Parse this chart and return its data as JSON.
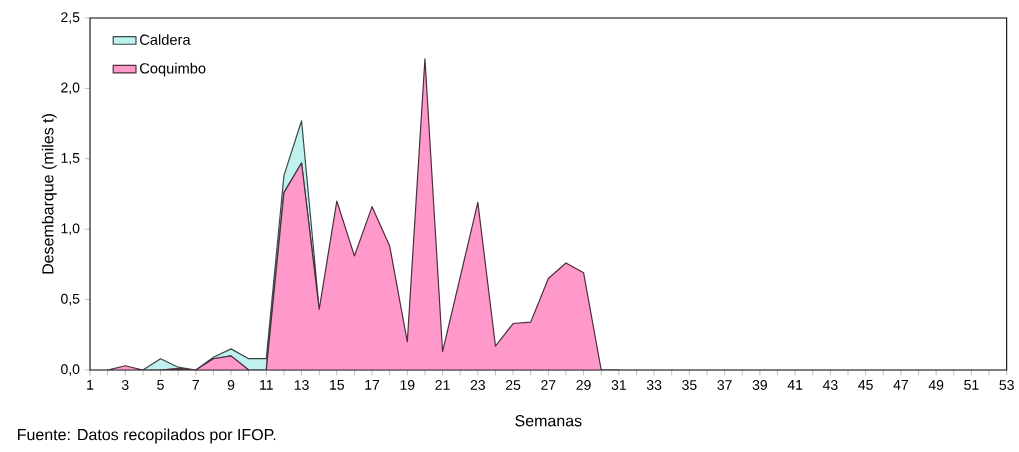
{
  "chart_data": {
    "type": "area",
    "stacked": true,
    "xlabel": "Semanas",
    "ylabel": "Desembarque  (miles t)",
    "annotations": [
      "Fuente: Datos recopilados por IFOP."
    ],
    "x": [
      2,
      3,
      4,
      5,
      6,
      7,
      8,
      9,
      10,
      11,
      12,
      13,
      14,
      15,
      16,
      17,
      18,
      19,
      20,
      21,
      22,
      23,
      24,
      25,
      26,
      27,
      28,
      29,
      30,
      31
    ],
    "series": [
      {
        "name": "Coquimbo",
        "color": "#ff99cc",
        "values": [
          0,
          0.03,
          0,
          0,
          0.01,
          0,
          0.08,
          0.1,
          0,
          0,
          1.26,
          1.47,
          0.43,
          1.2,
          0.81,
          1.16,
          0.88,
          0.2,
          2.21,
          0.13,
          0.66,
          1.19,
          0.17,
          0.33,
          0.34,
          0.65,
          0.76,
          0.69,
          0,
          0
        ]
      },
      {
        "name": "Caldera",
        "color": "#bff2ee",
        "values": [
          null,
          null,
          0,
          0.08,
          0.01,
          0,
          0.01,
          0.05,
          0.08,
          0.08,
          0.12,
          0.3,
          0,
          null,
          null,
          null,
          null,
          null,
          null,
          null,
          null,
          null,
          null,
          null,
          null,
          null,
          null,
          null,
          null,
          null
        ]
      }
    ],
    "xlim": [
      1,
      53
    ],
    "xticks": [
      1,
      {
        "value": 2,
        "label": null
      },
      3,
      {
        "value": 4,
        "label": null
      },
      5,
      {
        "value": 6,
        "label": null
      },
      7,
      {
        "value": 8,
        "label": null
      },
      9,
      {
        "value": 10,
        "label": null
      },
      11,
      {
        "value": 12,
        "label": null
      },
      13,
      {
        "value": 14,
        "label": null
      },
      15,
      {
        "value": 16,
        "label": null
      },
      17,
      {
        "value": 18,
        "label": null
      },
      19,
      {
        "value": 20,
        "label": null
      },
      21,
      {
        "value": 22,
        "label": null
      },
      23,
      {
        "value": 24,
        "label": null
      },
      25,
      {
        "value": 26,
        "label": null
      },
      27,
      {
        "value": 28,
        "label": null
      },
      29,
      {
        "value": 30,
        "label": null
      },
      31,
      {
        "value": 32,
        "label": null
      },
      33,
      {
        "value": 34,
        "label": null
      },
      35,
      {
        "value": 36,
        "label": null
      },
      37,
      {
        "value": 38,
        "label": null
      },
      39,
      {
        "value": 40,
        "label": null
      },
      41,
      {
        "value": 42,
        "label": null
      },
      43,
      {
        "value": 44,
        "label": null
      },
      45,
      {
        "value": 46,
        "label": null
      },
      47,
      {
        "value": 48,
        "label": null
      },
      49,
      {
        "value": 50,
        "label": null
      },
      51,
      {
        "value": 52,
        "label": null
      },
      53
    ],
    "ylim": [
      0,
      2.5
    ],
    "yticks": [
      {
        "value": 0,
        "label": "0,0"
      },
      {
        "value": 0.5,
        "label": "0,5"
      },
      {
        "value": 1,
        "label": "1,0"
      },
      {
        "value": 1.5,
        "label": "1,5"
      },
      {
        "value": 2,
        "label": "2,0"
      },
      {
        "value": 2.5,
        "label": "2,5"
      }
    ],
    "legend": "top left",
    "grid": false
  }
}
